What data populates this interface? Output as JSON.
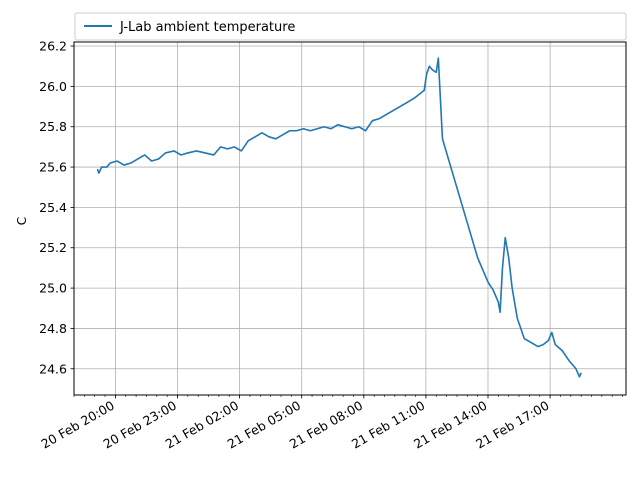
{
  "chart_data": {
    "type": "line",
    "title": "",
    "xlabel": "",
    "ylabel": "C",
    "ylim": [
      24.47,
      26.22
    ],
    "xlim": [
      "2019-02-20 18:00",
      "2019-02-21 20:40"
    ],
    "y_ticks": [
      24.6,
      24.8,
      25.0,
      25.2,
      25.4,
      25.6,
      25.8,
      26.0,
      26.2
    ],
    "y_tick_labels": [
      "24.6",
      "24.8",
      "25.0",
      "25.2",
      "25.4",
      "25.6",
      "25.8",
      "26.0",
      "26.2"
    ],
    "x_ticks": [
      "2019-02-20 20:00",
      "2019-02-20 23:00",
      "2019-02-21 02:00",
      "2019-02-21 05:00",
      "2019-02-21 08:00",
      "2019-02-21 11:00",
      "2019-02-21 14:00",
      "2019-02-21 17:00"
    ],
    "x_tick_labels": [
      "20 Feb 20:00",
      "20 Feb 23:00",
      "21 Feb 02:00",
      "21 Feb 05:00",
      "21 Feb 08:00",
      "21 Feb 11:00",
      "21 Feb 14:00",
      "21 Feb 17:00"
    ],
    "grid": true,
    "legend_position": "top-left",
    "series": [
      {
        "name": "J-Lab ambient temperature",
        "color": "#1f77b4",
        "points": [
          [
            "2019-02-20 19:08",
            25.59
          ],
          [
            "2019-02-20 19:12",
            25.57
          ],
          [
            "2019-02-20 19:20",
            25.6
          ],
          [
            "2019-02-20 19:35",
            25.6
          ],
          [
            "2019-02-20 19:45",
            25.62
          ],
          [
            "2019-02-20 20:05",
            25.63
          ],
          [
            "2019-02-20 20:25",
            25.61
          ],
          [
            "2019-02-20 20:45",
            25.62
          ],
          [
            "2019-02-20 21:05",
            25.64
          ],
          [
            "2019-02-20 21:25",
            25.66
          ],
          [
            "2019-02-20 21:45",
            25.63
          ],
          [
            "2019-02-20 22:05",
            25.64
          ],
          [
            "2019-02-20 22:25",
            25.67
          ],
          [
            "2019-02-20 22:50",
            25.68
          ],
          [
            "2019-02-20 23:10",
            25.66
          ],
          [
            "2019-02-20 23:30",
            25.67
          ],
          [
            "2019-02-20 23:55",
            25.68
          ],
          [
            "2019-02-21 00:20",
            25.67
          ],
          [
            "2019-02-21 00:45",
            25.66
          ],
          [
            "2019-02-21 01:05",
            25.7
          ],
          [
            "2019-02-21 01:25",
            25.69
          ],
          [
            "2019-02-21 01:45",
            25.7
          ],
          [
            "2019-02-21 02:05",
            25.68
          ],
          [
            "2019-02-21 02:25",
            25.73
          ],
          [
            "2019-02-21 02:45",
            25.75
          ],
          [
            "2019-02-21 03:05",
            25.77
          ],
          [
            "2019-02-21 03:25",
            25.75
          ],
          [
            "2019-02-21 03:45",
            25.74
          ],
          [
            "2019-02-21 04:05",
            25.76
          ],
          [
            "2019-02-21 04:25",
            25.78
          ],
          [
            "2019-02-21 04:45",
            25.78
          ],
          [
            "2019-02-21 05:05",
            25.79
          ],
          [
            "2019-02-21 05:25",
            25.78
          ],
          [
            "2019-02-21 05:45",
            25.79
          ],
          [
            "2019-02-21 06:05",
            25.8
          ],
          [
            "2019-02-21 06:25",
            25.79
          ],
          [
            "2019-02-21 06:45",
            25.81
          ],
          [
            "2019-02-21 07:05",
            25.8
          ],
          [
            "2019-02-21 07:25",
            25.79
          ],
          [
            "2019-02-21 07:45",
            25.8
          ],
          [
            "2019-02-21 08:05",
            25.78
          ],
          [
            "2019-02-21 08:25",
            25.83
          ],
          [
            "2019-02-21 08:45",
            25.84
          ],
          [
            "2019-02-21 09:05",
            25.86
          ],
          [
            "2019-02-21 09:25",
            25.88
          ],
          [
            "2019-02-21 09:45",
            25.9
          ],
          [
            "2019-02-21 10:05",
            25.92
          ],
          [
            "2019-02-21 10:25",
            25.94
          ],
          [
            "2019-02-21 10:40",
            25.96
          ],
          [
            "2019-02-21 10:55",
            25.98
          ],
          [
            "2019-02-21 11:02",
            26.06
          ],
          [
            "2019-02-21 11:10",
            26.1
          ],
          [
            "2019-02-21 11:20",
            26.08
          ],
          [
            "2019-02-21 11:30",
            26.07
          ],
          [
            "2019-02-21 11:36",
            26.14
          ],
          [
            "2019-02-21 11:48",
            25.74
          ],
          [
            "2019-02-21 13:30",
            25.15
          ],
          [
            "2019-02-21 14:00",
            25.03
          ],
          [
            "2019-02-21 14:15",
            24.99
          ],
          [
            "2019-02-21 14:30",
            24.93
          ],
          [
            "2019-02-21 14:35",
            24.88
          ],
          [
            "2019-02-21 14:42",
            25.1
          ],
          [
            "2019-02-21 14:50",
            25.25
          ],
          [
            "2019-02-21 15:00",
            25.15
          ],
          [
            "2019-02-21 15:10",
            25.0
          ],
          [
            "2019-02-21 15:25",
            24.85
          ],
          [
            "2019-02-21 15:45",
            24.75
          ],
          [
            "2019-02-21 16:05",
            24.73
          ],
          [
            "2019-02-21 16:25",
            24.71
          ],
          [
            "2019-02-21 16:40",
            24.72
          ],
          [
            "2019-02-21 16:55",
            24.74
          ],
          [
            "2019-02-21 17:05",
            24.78
          ],
          [
            "2019-02-21 17:15",
            24.72
          ],
          [
            "2019-02-21 17:35",
            24.69
          ],
          [
            "2019-02-21 17:55",
            24.64
          ],
          [
            "2019-02-21 18:15",
            24.6
          ],
          [
            "2019-02-21 18:25",
            24.56
          ],
          [
            "2019-02-21 18:30",
            24.58
          ]
        ]
      }
    ]
  }
}
